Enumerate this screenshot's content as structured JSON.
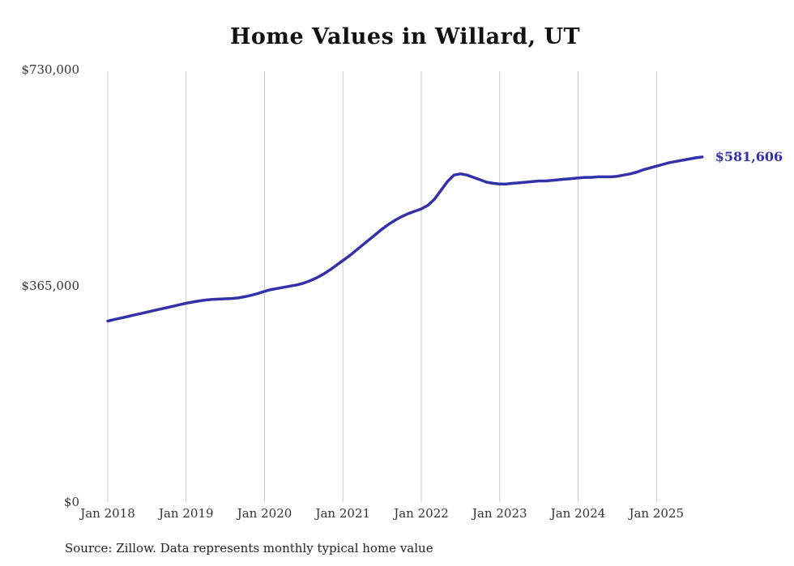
{
  "chart_data": {
    "type": "line",
    "title": "Home Values in Willard, UT",
    "xlabel": "",
    "ylabel": "",
    "ylim": [
      0,
      730000
    ],
    "grid": "vertical-january-gridlines",
    "legend_position": "none",
    "line_color": "#3431a8",
    "gridline_color": "#cccccc",
    "y_tick_labels": [
      "$0",
      "$365,000",
      "$730,000"
    ],
    "y_tick_values": [
      0,
      365000,
      730000
    ],
    "x_tick_labels": [
      "Jan 2018",
      "Jan 2019",
      "Jan 2020",
      "Jan 2021",
      "Jan 2022",
      "Jan 2023",
      "Jan 2024",
      "Jan 2025"
    ],
    "end_label": "$581,606",
    "source": "Source: Zillow. Data represents monthly typical home value",
    "series": [
      {
        "name": "Typical home value",
        "months": [
          "2018-01",
          "2018-02",
          "2018-03",
          "2018-04",
          "2018-05",
          "2018-06",
          "2018-07",
          "2018-08",
          "2018-09",
          "2018-10",
          "2018-11",
          "2018-12",
          "2019-01",
          "2019-02",
          "2019-03",
          "2019-04",
          "2019-05",
          "2019-06",
          "2019-07",
          "2019-08",
          "2019-09",
          "2019-10",
          "2019-11",
          "2019-12",
          "2020-01",
          "2020-02",
          "2020-03",
          "2020-04",
          "2020-05",
          "2020-06",
          "2020-07",
          "2020-08",
          "2020-09",
          "2020-10",
          "2020-11",
          "2020-12",
          "2021-01",
          "2021-02",
          "2021-03",
          "2021-04",
          "2021-05",
          "2021-06",
          "2021-07",
          "2021-08",
          "2021-09",
          "2021-10",
          "2021-11",
          "2021-12",
          "2022-01",
          "2022-02",
          "2022-03",
          "2022-04",
          "2022-05",
          "2022-06",
          "2022-07",
          "2022-08",
          "2022-09",
          "2022-10",
          "2022-11",
          "2022-12",
          "2023-01",
          "2023-02",
          "2023-03",
          "2023-04",
          "2023-05",
          "2023-06",
          "2023-07",
          "2023-08",
          "2023-09",
          "2023-10",
          "2023-11",
          "2023-12",
          "2024-01",
          "2024-02",
          "2024-03",
          "2024-04",
          "2024-05",
          "2024-06",
          "2024-07",
          "2024-08",
          "2024-09",
          "2024-10",
          "2024-11",
          "2024-12",
          "2025-01",
          "2025-02",
          "2025-03",
          "2025-04",
          "2025-05",
          "2025-06",
          "2025-07",
          "2025-08"
        ],
        "values": [
          305000,
          307500,
          310000,
          312500,
          315000,
          317500,
          320000,
          322500,
          325000,
          327500,
          330000,
          332500,
          335000,
          337000,
          339000,
          340500,
          341500,
          342000,
          342500,
          343000,
          344000,
          346000,
          348500,
          351500,
          355000,
          358000,
          360000,
          362000,
          364000,
          366000,
          369000,
          373000,
          378000,
          384000,
          391000,
          399000,
          407000,
          415000,
          424000,
          433000,
          442000,
          451000,
          460000,
          468000,
          475000,
          481000,
          486000,
          490000,
          494000,
          500000,
          510000,
          525000,
          540000,
          551000,
          553000,
          551000,
          547000,
          543000,
          539000,
          537000,
          536000,
          536000,
          537000,
          538000,
          539000,
          540000,
          541000,
          541000,
          542000,
          543000,
          544000,
          545000,
          546000,
          547000,
          547000,
          548000,
          548000,
          548000,
          549000,
          551000,
          553000,
          556000,
          560000,
          563000,
          566000,
          569000,
          572000,
          574000,
          576000,
          578000,
          580000,
          581606
        ]
      }
    ]
  }
}
